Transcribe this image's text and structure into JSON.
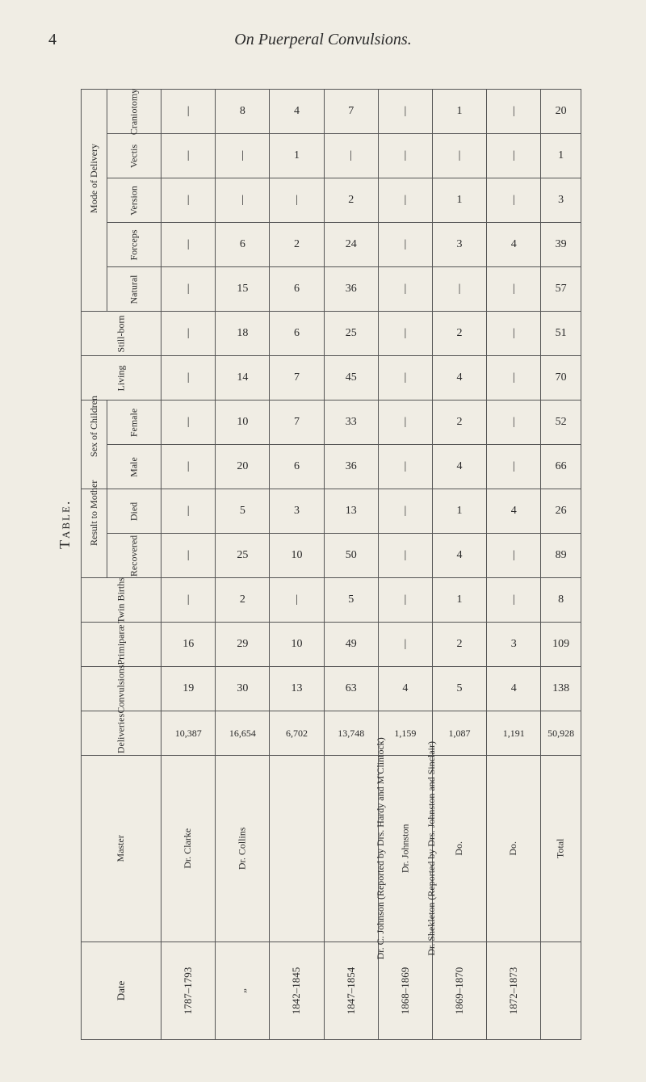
{
  "page_number": "4",
  "running_title": "On Puerperal Convulsions.",
  "side_label": "Table.",
  "group_headers": {
    "mode_of_delivery": "Mode of Delivery",
    "sex_of_children": "Sex of Children",
    "result_to_mother": "Result to Mother"
  },
  "row_headers": {
    "craniotomy": "Craniotomy",
    "vectis": "Vectis",
    "version": "Version",
    "forceps": "Forceps",
    "natural": "Natural",
    "stillborn": "Still-born",
    "living": "Living",
    "female": "Female",
    "male": "Male",
    "died": "Died",
    "recovered": "Recovered",
    "twin_births": "Twin Births",
    "primiparae": "Primiparæ",
    "convulsions": "Convulsions",
    "deliveries": "Deliveries",
    "master": "Master",
    "date": "Date",
    "total": "Total"
  },
  "masters": [
    "Dr. Clarke",
    "Dr. Collins",
    "Dr. C. Johnson (Reported by Drs. Hardy and M'Clintock)",
    "Dr. Shekleton (Reported by Drs. Johnston and Sinclair)",
    "Dr. Johnston",
    "Do.",
    "Do."
  ],
  "dates": [
    "1787–1793",
    "„",
    "1842–1845",
    "1847–1854",
    "1868–1869",
    "1869–1870",
    "1872–1873"
  ],
  "rows": {
    "craniotomy": [
      "|",
      "8",
      "4",
      "7",
      "|",
      "1",
      "|",
      "20"
    ],
    "vectis": [
      "|",
      "|",
      "1",
      "|",
      "|",
      "|",
      "|",
      "1"
    ],
    "version": [
      "|",
      "|",
      "|",
      "2",
      "|",
      "1",
      "|",
      "3"
    ],
    "forceps": [
      "|",
      "6",
      "2",
      "24",
      "|",
      "3",
      "4",
      "39"
    ],
    "natural": [
      "|",
      "15",
      "6",
      "36",
      "|",
      "|",
      "|",
      "57"
    ],
    "stillborn": [
      "|",
      "18",
      "6",
      "25",
      "|",
      "2",
      "|",
      "51"
    ],
    "living": [
      "|",
      "14",
      "7",
      "45",
      "|",
      "4",
      "|",
      "70"
    ],
    "female": [
      "|",
      "10",
      "7",
      "33",
      "|",
      "2",
      "|",
      "52"
    ],
    "male": [
      "|",
      "20",
      "6",
      "36",
      "|",
      "4",
      "|",
      "66"
    ],
    "died": [
      "|",
      "5",
      "3",
      "13",
      "|",
      "1",
      "4",
      "26"
    ],
    "recovered": [
      "|",
      "25",
      "10",
      "50",
      "|",
      "4",
      "|",
      "89"
    ],
    "twin_births": [
      "|",
      "2",
      "|",
      "5",
      "|",
      "1",
      "|",
      "8"
    ],
    "primiparae": [
      "16",
      "29",
      "10",
      "49",
      "|",
      "2",
      "3",
      "109"
    ],
    "convulsions": [
      "19",
      "30",
      "13",
      "63",
      "4",
      "5",
      "4",
      "138"
    ],
    "deliveries": [
      "10,387",
      "16,654",
      "6,702",
      "13,748",
      "1,159",
      "1,087",
      "1,191",
      "50,928"
    ]
  }
}
